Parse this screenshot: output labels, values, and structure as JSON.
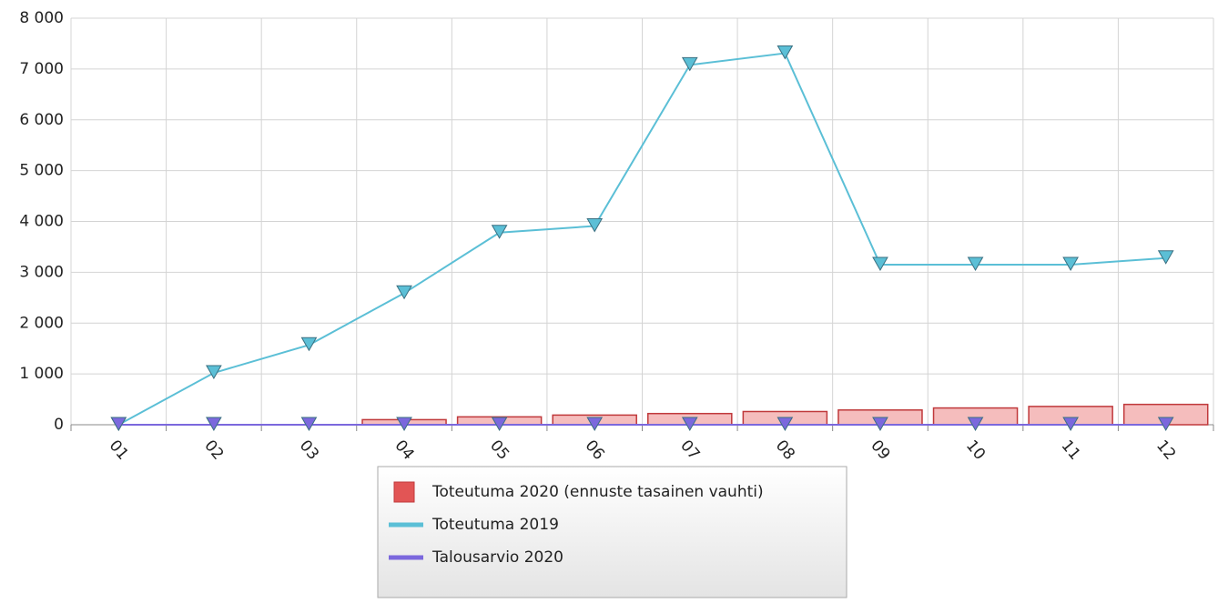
{
  "chart_data": {
    "type": "bar",
    "categories": [
      "01",
      "02",
      "03",
      "04",
      "05",
      "06",
      "07",
      "08",
      "09",
      "10",
      "11",
      "12"
    ],
    "series": [
      {
        "name": "Toteutuma 2020 (ennuste tasainen vauhti)",
        "type": "bar",
        "color": "#c0393b",
        "values": [
          0,
          0,
          0,
          100,
          155,
          190,
          220,
          260,
          290,
          330,
          360,
          400
        ]
      },
      {
        "name": "Toteutuma 2019",
        "type": "line",
        "color": "#5bbfd6",
        "values": [
          0,
          1020,
          1570,
          2590,
          3780,
          3910,
          7080,
          7310,
          3150,
          3150,
          3150,
          3280
        ]
      },
      {
        "name": "Talousarvio 2020",
        "type": "line",
        "color": "#7b68dd",
        "values": [
          0,
          0,
          0,
          0,
          0,
          0,
          0,
          0,
          0,
          0,
          0,
          0
        ]
      }
    ],
    "ylim": [
      0,
      8000
    ],
    "yticks": [
      0,
      {
        "value": 1000,
        "label": "1 000"
      },
      {
        "value": 2000,
        "label": "2 000"
      },
      {
        "value": 3000,
        "label": "3 000"
      },
      {
        "value": 4000,
        "label": "4 000"
      },
      {
        "value": 5000,
        "label": "5 000"
      },
      {
        "value": 6000,
        "label": "6 000"
      },
      {
        "value": 7000,
        "label": "7 000"
      },
      {
        "value": 8000,
        "label": "8 000"
      }
    ],
    "grid": true,
    "legend": "bottom"
  }
}
